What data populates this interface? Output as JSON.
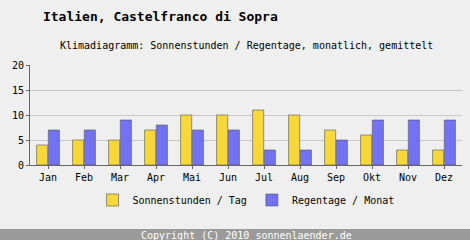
{
  "chart_data": {
    "type": "bar",
    "title": "Italien, Castelfranco di Sopra",
    "subtitle": "Klimadiagramm: Sonnenstunden / Regentage, monatlich, gemittelt",
    "footer": "Copyright (C) 2010 sonnenlaender.de",
    "categories": [
      "Jan",
      "Feb",
      "Mar",
      "Apr",
      "Mai",
      "Jun",
      "Jul",
      "Aug",
      "Sep",
      "Okt",
      "Nov",
      "Dez"
    ],
    "series": [
      {
        "name": "Sonnenstunden / Tag",
        "color": "#f8d838",
        "values": [
          4,
          5,
          5,
          7,
          10,
          10,
          11,
          10,
          7,
          6,
          3,
          3
        ]
      },
      {
        "name": "Regentage / Monat",
        "color": "#7272f2",
        "values": [
          7,
          7,
          9,
          8,
          7,
          7,
          3,
          3,
          5,
          9,
          9,
          9
        ]
      }
    ],
    "ylim": [
      0,
      20
    ],
    "yticks": [
      0,
      5,
      10,
      15,
      20
    ],
    "grid": true,
    "legend": "bottom"
  }
}
